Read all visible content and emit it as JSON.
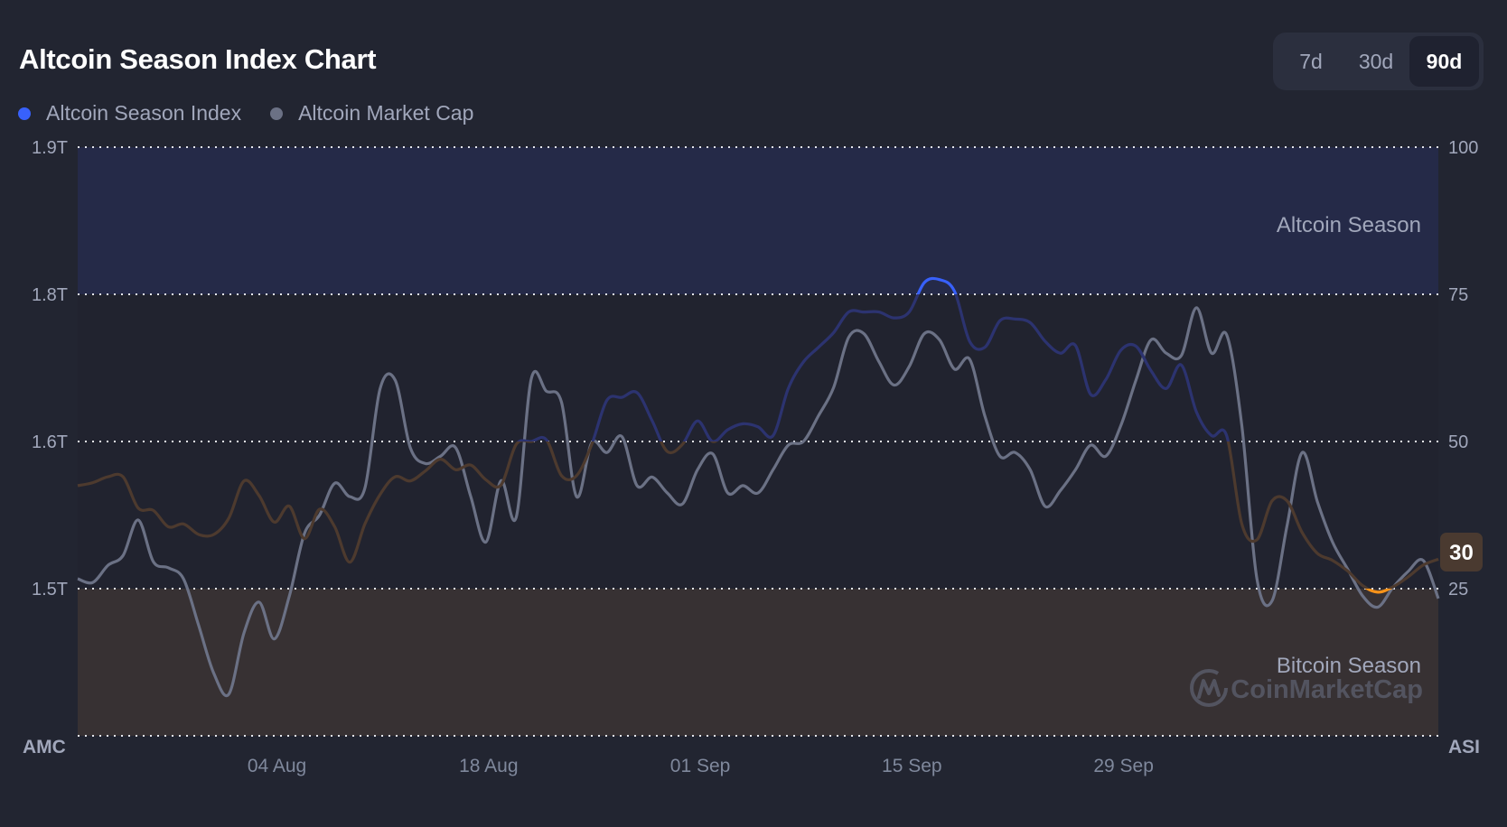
{
  "header": {
    "title": "Altcoin Season Index Chart"
  },
  "legend": [
    {
      "label": "Altcoin Season Index",
      "color": "#3861fb"
    },
    {
      "label": "Altcoin Market Cap",
      "color": "#6b7185"
    }
  ],
  "range_toggle": {
    "options": [
      "7d",
      "30d",
      "90d"
    ],
    "selected": "90d"
  },
  "watermark": "CoinMarketCap",
  "chart_data": {
    "type": "line",
    "x_start": "22 Jul",
    "x_end": "20 Oct",
    "x_interval": "1 day",
    "x_ticks": [
      {
        "day": 13,
        "label": "04 Aug"
      },
      {
        "day": 27,
        "label": "18 Aug"
      },
      {
        "day": 41,
        "label": "01 Sep"
      },
      {
        "day": 55,
        "label": "15 Sep"
      },
      {
        "day": 69,
        "label": "29 Sep"
      }
    ],
    "left_axis": {
      "label": "AMC",
      "range": [
        1.39,
        1.87
      ],
      "ticks": [
        {
          "value": 1.87,
          "label": "1.9T"
        },
        {
          "value": 1.75,
          "label": "1.8T"
        },
        {
          "value": 1.63,
          "label": "1.6T"
        },
        {
          "value": 1.51,
          "label": "1.5T"
        }
      ]
    },
    "right_axis": {
      "label": "ASI",
      "range": [
        0,
        100
      ],
      "ticks": [
        {
          "value": 100,
          "label": "100"
        },
        {
          "value": 75,
          "label": "75"
        },
        {
          "value": 50,
          "label": "50"
        },
        {
          "value": 25,
          "label": "25"
        }
      ]
    },
    "grid": true,
    "legend_placement": "top-left",
    "zones": [
      {
        "label": "Altcoin Season",
        "from": 75,
        "to": 100,
        "color": "#252a48"
      },
      {
        "label": "Bitcoin Season",
        "from": 0,
        "to": 25,
        "color": "#373133"
      }
    ],
    "current_value": {
      "label": "30",
      "value": 30
    },
    "line_colors": {
      "above_75": "#3861fb",
      "50_75": "#2c3370",
      "25_50": "#4d3a2e",
      "below_25": "#f7931a"
    },
    "series": [
      {
        "name": "Altcoin Season Index",
        "axis": "right",
        "color": "#3861fb",
        "values": [
          42.5,
          43,
          44,
          44,
          38.7,
          38.3,
          35.5,
          36,
          34.2,
          34.2,
          37,
          43.3,
          40.8,
          36.3,
          39,
          33.5,
          38.5,
          35.5,
          29.5,
          36,
          41,
          44,
          43.3,
          45,
          47,
          45.2,
          46,
          43.5,
          42.6,
          49.5,
          50,
          50.3,
          44.2,
          44.2,
          49.5,
          57,
          57.5,
          58.3,
          53.5,
          48.3,
          49.5,
          53.5,
          50,
          52,
          53,
          52.5,
          51,
          59,
          63.5,
          66,
          68.5,
          72,
          72,
          72,
          71,
          72,
          77,
          77.5,
          75.5,
          67,
          66,
          70.5,
          70.8,
          70.2,
          67,
          65,
          66.3,
          58,
          60.5,
          65.5,
          66.2,
          62,
          59,
          63,
          55,
          51,
          51,
          36,
          33.3,
          39.9,
          39.9,
          34.5,
          31,
          29.8,
          28,
          25.5,
          24.4,
          25.3,
          27,
          29,
          30
        ]
      },
      {
        "name": "Altcoin Market Cap",
        "axis": "left",
        "unit": "T",
        "color": "#6b7185",
        "values": [
          1.518,
          1.515,
          1.529,
          1.537,
          1.566,
          1.532,
          1.527,
          1.518,
          1.48,
          1.441,
          1.424,
          1.474,
          1.499,
          1.469,
          1.504,
          1.555,
          1.57,
          1.596,
          1.585,
          1.592,
          1.673,
          1.68,
          1.625,
          1.612,
          1.618,
          1.625,
          1.585,
          1.548,
          1.598,
          1.568,
          1.681,
          1.671,
          1.662,
          1.585,
          1.629,
          1.621,
          1.634,
          1.594,
          1.601,
          1.588,
          1.579,
          1.607,
          1.62,
          1.588,
          1.594,
          1.588,
          1.607,
          1.627,
          1.63,
          1.651,
          1.674,
          1.715,
          1.718,
          1.695,
          1.676,
          1.691,
          1.718,
          1.713,
          1.689,
          1.697,
          1.651,
          1.618,
          1.621,
          1.607,
          1.577,
          1.59,
          1.607,
          1.627,
          1.618,
          1.643,
          1.68,
          1.713,
          1.702,
          1.7,
          1.739,
          1.702,
          1.717,
          1.643,
          1.518,
          1.5,
          1.562,
          1.621,
          1.581,
          1.548,
          1.526,
          1.504,
          1.495,
          1.511,
          1.524,
          1.533,
          1.502
        ]
      }
    ]
  }
}
